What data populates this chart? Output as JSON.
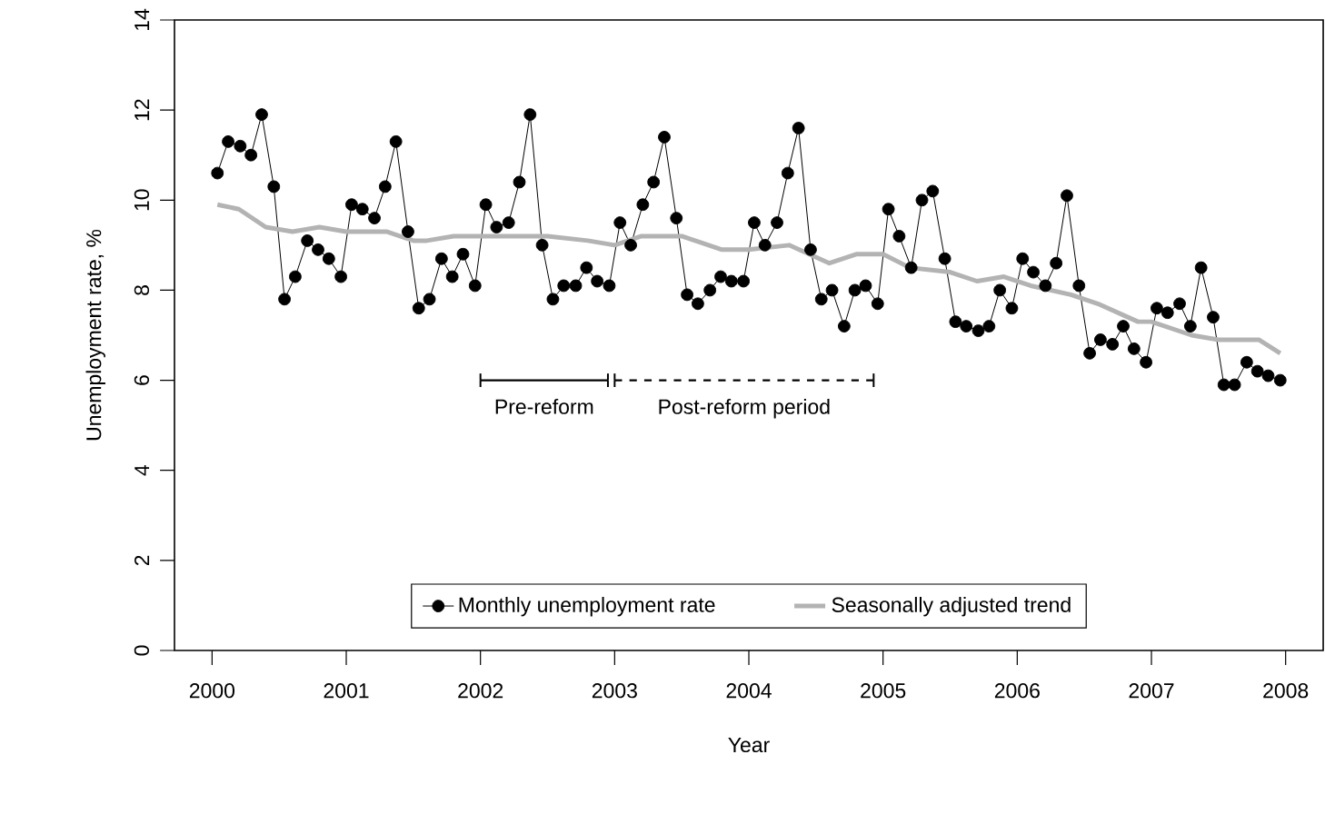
{
  "chart_data": {
    "type": "line",
    "xlabel": "Year",
    "ylabel": "Unemployment rate, %",
    "xlim": [
      1999.72,
      2008.28
    ],
    "ylim": [
      0,
      14
    ],
    "xticks": [
      2000,
      2001,
      2002,
      2003,
      2004,
      2005,
      2006,
      2007,
      2008
    ],
    "yticks": [
      0,
      2,
      4,
      6,
      8,
      10,
      12,
      14
    ],
    "legend": "bottom",
    "grid": false,
    "series": [
      {
        "name": "Monthly unemployment rate",
        "color": "#000000",
        "marker": "circle",
        "x": [
          2000.04,
          2000.12,
          2000.21,
          2000.29,
          2000.37,
          2000.46,
          2000.54,
          2000.62,
          2000.71,
          2000.79,
          2000.87,
          2000.96,
          2001.04,
          2001.12,
          2001.21,
          2001.29,
          2001.37,
          2001.46,
          2001.54,
          2001.62,
          2001.71,
          2001.79,
          2001.87,
          2001.96,
          2002.04,
          2002.12,
          2002.21,
          2002.29,
          2002.37,
          2002.46,
          2002.54,
          2002.62,
          2002.71,
          2002.79,
          2002.87,
          2002.96,
          2003.04,
          2003.12,
          2003.21,
          2003.29,
          2003.37,
          2003.46,
          2003.54,
          2003.62,
          2003.71,
          2003.79,
          2003.87,
          2003.96,
          2004.04,
          2004.12,
          2004.21,
          2004.29,
          2004.37,
          2004.46,
          2004.54,
          2004.62,
          2004.71,
          2004.79,
          2004.87,
          2004.96,
          2005.04,
          2005.12,
          2005.21,
          2005.29,
          2005.37,
          2005.46,
          2005.54,
          2005.62,
          2005.71,
          2005.79,
          2005.87,
          2005.96,
          2006.04,
          2006.12,
          2006.21,
          2006.29,
          2006.37,
          2006.46,
          2006.54,
          2006.62,
          2006.71,
          2006.79,
          2006.87,
          2006.96,
          2007.04,
          2007.12,
          2007.21,
          2007.29,
          2007.37,
          2007.46,
          2007.54,
          2007.62,
          2007.71,
          2007.79,
          2007.87,
          2007.96
        ],
        "values": [
          10.6,
          11.3,
          11.2,
          11.0,
          11.9,
          10.3,
          7.8,
          8.3,
          9.1,
          8.9,
          8.7,
          8.3,
          9.9,
          9.8,
          9.6,
          10.3,
          11.3,
          9.3,
          7.6,
          7.8,
          8.7,
          8.3,
          8.8,
          8.1,
          9.9,
          9.4,
          9.5,
          10.4,
          11.9,
          9.0,
          7.8,
          8.1,
          8.1,
          8.5,
          8.2,
          8.1,
          9.5,
          9.0,
          9.9,
          10.4,
          11.4,
          9.6,
          7.9,
          7.7,
          8.0,
          8.3,
          8.2,
          8.2,
          9.5,
          9.0,
          9.5,
          10.6,
          11.6,
          8.9,
          7.8,
          8.0,
          7.2,
          8.0,
          8.1,
          7.7,
          9.8,
          9.2,
          8.5,
          10.0,
          10.2,
          8.7,
          7.3,
          7.2,
          7.1,
          7.2,
          8.0,
          7.6,
          8.7,
          8.4,
          8.1,
          8.6,
          10.1,
          8.1,
          6.6,
          6.9,
          6.8,
          7.2,
          6.7,
          6.4,
          7.6,
          7.5,
          7.7,
          7.2,
          8.5,
          7.4,
          5.9,
          5.9,
          6.4,
          6.2,
          6.1,
          6.0
        ]
      },
      {
        "name": "Seasonally adjusted trend",
        "color": "#b3b3b3",
        "marker": "none",
        "x": [
          2000.04,
          2000.2,
          2000.4,
          2000.6,
          2000.8,
          2001.0,
          2001.3,
          2001.5,
          2001.6,
          2001.8,
          2002.0,
          2002.5,
          2002.8,
          2003.0,
          2003.2,
          2003.5,
          2003.8,
          2004.0,
          2004.3,
          2004.6,
          2004.8,
          2005.0,
          2005.2,
          2005.5,
          2005.7,
          2005.9,
          2006.1,
          2006.4,
          2006.6,
          2006.9,
          2007.0,
          2007.3,
          2007.5,
          2007.8,
          2007.96
        ],
        "values": [
          9.9,
          9.8,
          9.4,
          9.3,
          9.4,
          9.3,
          9.3,
          9.1,
          9.1,
          9.2,
          9.2,
          9.2,
          9.1,
          9.0,
          9.2,
          9.2,
          8.9,
          8.9,
          9.0,
          8.6,
          8.8,
          8.8,
          8.5,
          8.4,
          8.2,
          8.3,
          8.1,
          7.9,
          7.7,
          7.3,
          7.3,
          7.0,
          6.9,
          6.9,
          6.6
        ]
      },
      {
        "name": "Pre-reform",
        "color": "#000000",
        "marker": "none",
        "line_style": "solid",
        "x": [
          2002,
          2002.95
        ],
        "values": [
          6,
          6
        ],
        "errors": [
          0.15,
          0.15
        ]
      },
      {
        "name": "Post-reform period",
        "color": "#000000",
        "marker": "none",
        "line_style": "dashed",
        "x": [
          2003,
          2004.93
        ],
        "values": [
          6,
          6
        ],
        "errors": [
          0.15,
          0.15
        ]
      }
    ]
  }
}
